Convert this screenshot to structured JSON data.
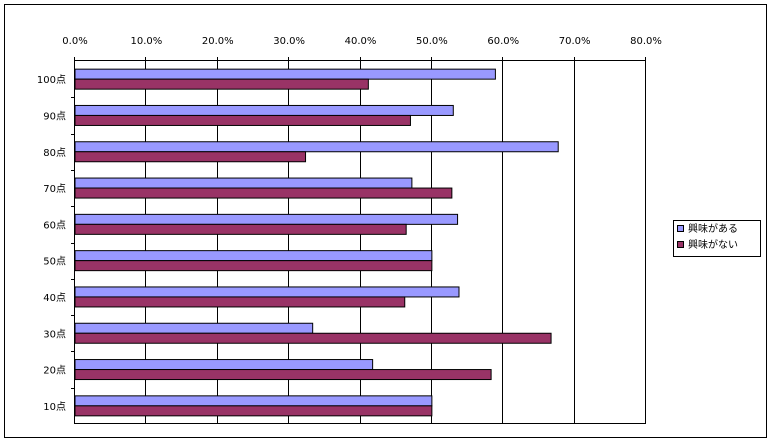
{
  "chart_data": {
    "type": "bar",
    "orientation": "horizontal",
    "categories": [
      "100点",
      "90点",
      "80点",
      "70点",
      "60点",
      "50点",
      "40点",
      "30点",
      "20点",
      "10点"
    ],
    "series": [
      {
        "name": "興味がある",
        "color": "#9999ff",
        "values": [
          0.589,
          0.53,
          0.677,
          0.472,
          0.536,
          0.5,
          0.538,
          0.333,
          0.417,
          0.5
        ]
      },
      {
        "name": "興味がない",
        "color": "#993366",
        "values": [
          0.411,
          0.47,
          0.323,
          0.528,
          0.464,
          0.5,
          0.462,
          0.667,
          0.583,
          0.5
        ]
      }
    ],
    "xlim": [
      0,
      0.8
    ],
    "x_ticks": [
      "0.0%",
      "10.0%",
      "20.0%",
      "30.0%",
      "40.0%",
      "50.0%",
      "60.0%",
      "70.0%",
      "80.0%"
    ],
    "gridlines": "vertical-major",
    "legend_position": "right"
  }
}
